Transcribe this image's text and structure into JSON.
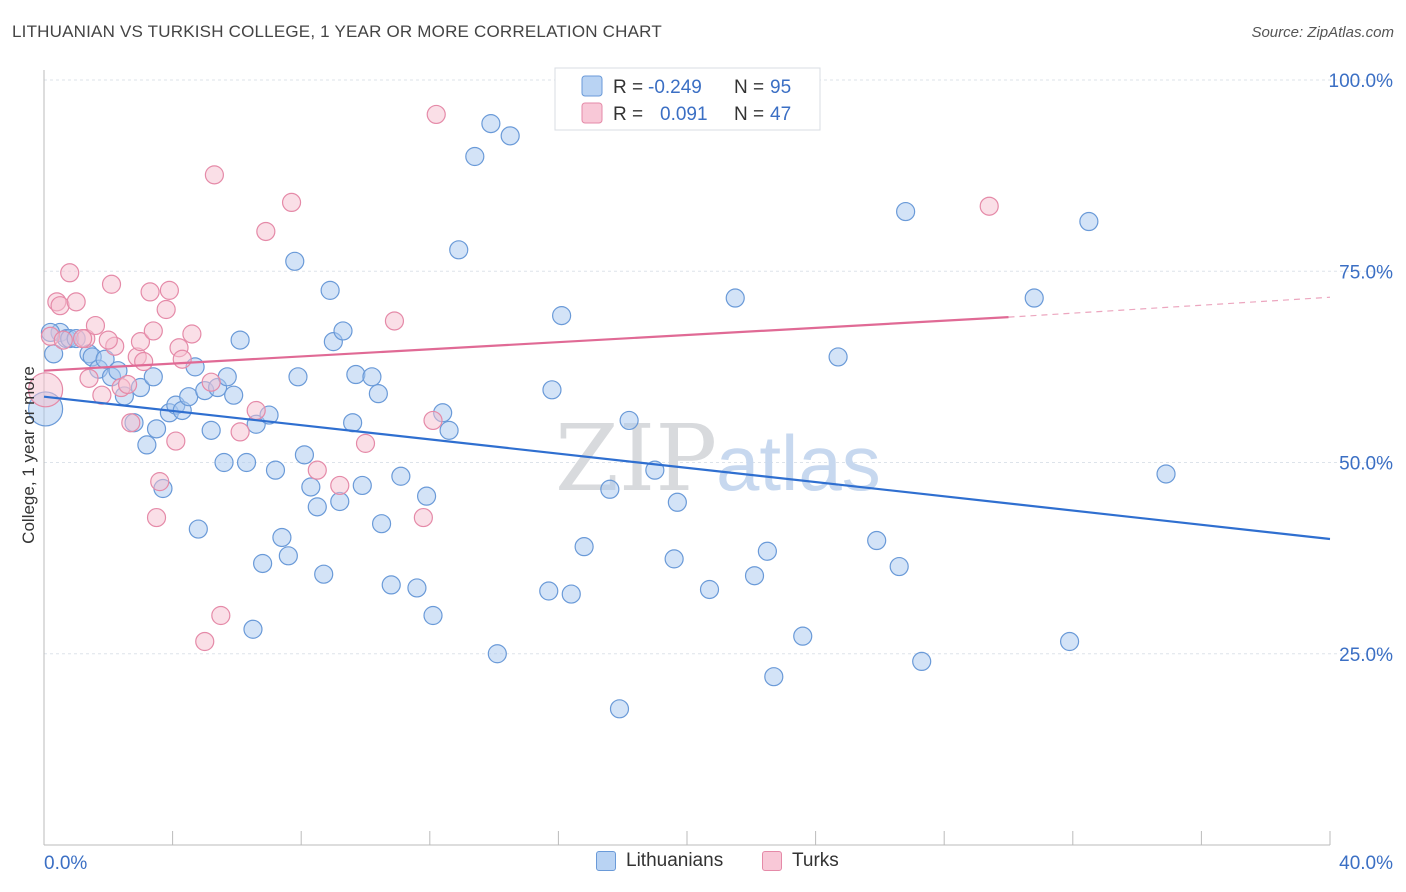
{
  "title": "LITHUANIAN VS TURKISH COLLEGE, 1 YEAR OR MORE CORRELATION CHART",
  "source": "Source: ZipAtlas.com",
  "watermark": {
    "zip": "ZIP",
    "atlas": "atlas"
  },
  "colors": {
    "blue_fill": "#a8c8f0",
    "blue_stroke": "#6a9ad8",
    "blue_line": "#2f6fd0",
    "pink_fill": "#f6bfd0",
    "pink_stroke": "#e58aa8",
    "pink_line": "#e06a95",
    "axis_text": "#3b6fc4",
    "grid": "#dde3ea"
  },
  "legend": {
    "rows": [
      {
        "r_label": "R =",
        "r_value": "-0.249",
        "n_label": "N =",
        "n_value": "95",
        "series": "Lithuanians"
      },
      {
        "r_label": "R =",
        "r_value": "0.091",
        "n_label": "N =",
        "n_value": "47",
        "series": "Turks"
      }
    ]
  },
  "bottom_legend": [
    "Lithuanians",
    "Turks"
  ],
  "chart_data": {
    "type": "scatter",
    "title": "LITHUANIAN VS TURKISH COLLEGE, 1 YEAR OR MORE CORRELATION CHART",
    "xlabel": "",
    "ylabel": "College, 1 year or more",
    "xlim": [
      0,
      40
    ],
    "ylim": [
      0,
      105
    ],
    "x_tick_labels": [
      "0.0%",
      "40.0%"
    ],
    "y_ticks": [
      25,
      50,
      75,
      100
    ],
    "y_tick_labels": [
      "25.0%",
      "50.0%",
      "75.0%",
      "100.0%"
    ],
    "grid": true,
    "series": [
      {
        "name": "Lithuanians",
        "r": -0.249,
        "n": 95,
        "trend": {
          "x": [
            0,
            40
          ],
          "y": [
            58.6,
            40.0
          ]
        },
        "points": [
          [
            0.3,
            64.2
          ],
          [
            0.5,
            67.0
          ],
          [
            0.7,
            66.2
          ],
          [
            0.8,
            66.2
          ],
          [
            1.0,
            66.2
          ],
          [
            1.4,
            64.2
          ],
          [
            1.5,
            63.8
          ],
          [
            1.7,
            62.2
          ],
          [
            1.9,
            63.5
          ],
          [
            2.1,
            61.2
          ],
          [
            2.3,
            62.0
          ],
          [
            2.5,
            58.7
          ],
          [
            2.8,
            55.2
          ],
          [
            3.0,
            59.8
          ],
          [
            3.2,
            52.3
          ],
          [
            3.4,
            61.2
          ],
          [
            3.5,
            54.4
          ],
          [
            3.7,
            46.6
          ],
          [
            3.9,
            56.5
          ],
          [
            4.1,
            57.5
          ],
          [
            4.3,
            56.8
          ],
          [
            4.5,
            58.6
          ],
          [
            4.7,
            62.5
          ],
          [
            4.8,
            41.3
          ],
          [
            5.0,
            59.4
          ],
          [
            5.2,
            54.2
          ],
          [
            5.4,
            59.8
          ],
          [
            5.6,
            50.0
          ],
          [
            5.7,
            61.2
          ],
          [
            5.9,
            58.8
          ],
          [
            6.1,
            66.0
          ],
          [
            6.3,
            50.0
          ],
          [
            6.5,
            28.2
          ],
          [
            6.6,
            55.0
          ],
          [
            6.8,
            36.8
          ],
          [
            7.0,
            56.2
          ],
          [
            7.2,
            49.0
          ],
          [
            7.4,
            40.2
          ],
          [
            7.6,
            37.8
          ],
          [
            7.8,
            76.3
          ],
          [
            7.9,
            61.2
          ],
          [
            8.1,
            51.0
          ],
          [
            8.3,
            46.8
          ],
          [
            8.5,
            44.2
          ],
          [
            8.7,
            35.4
          ],
          [
            8.9,
            72.5
          ],
          [
            9.0,
            65.8
          ],
          [
            9.2,
            44.9
          ],
          [
            9.3,
            67.2
          ],
          [
            9.6,
            55.2
          ],
          [
            9.7,
            61.5
          ],
          [
            9.9,
            47.0
          ],
          [
            10.2,
            61.2
          ],
          [
            10.4,
            59.0
          ],
          [
            10.5,
            42.0
          ],
          [
            10.8,
            34.0
          ],
          [
            11.1,
            48.2
          ],
          [
            11.6,
            33.6
          ],
          [
            11.9,
            45.6
          ],
          [
            12.1,
            30.0
          ],
          [
            12.4,
            56.5
          ],
          [
            12.6,
            54.2
          ],
          [
            12.9,
            77.8
          ],
          [
            13.4,
            90.0
          ],
          [
            13.9,
            94.3
          ],
          [
            14.1,
            25.0
          ],
          [
            14.5,
            92.7
          ],
          [
            15.7,
            33.2
          ],
          [
            15.8,
            59.5
          ],
          [
            16.1,
            69.2
          ],
          [
            16.4,
            32.8
          ],
          [
            16.8,
            39.0
          ],
          [
            17.6,
            46.5
          ],
          [
            17.9,
            17.8
          ],
          [
            18.2,
            55.5
          ],
          [
            19.0,
            49.0
          ],
          [
            19.6,
            37.4
          ],
          [
            19.7,
            44.8
          ],
          [
            20.7,
            33.4
          ],
          [
            21.5,
            71.5
          ],
          [
            22.1,
            35.2
          ],
          [
            22.5,
            38.4
          ],
          [
            22.7,
            22.0
          ],
          [
            23.6,
            27.3
          ],
          [
            24.7,
            63.8
          ],
          [
            25.9,
            39.8
          ],
          [
            26.6,
            36.4
          ],
          [
            26.8,
            82.8
          ],
          [
            27.3,
            24.0
          ],
          [
            30.8,
            71.5
          ],
          [
            31.9,
            26.6
          ],
          [
            32.5,
            81.5
          ],
          [
            34.9,
            48.5
          ],
          [
            0.05,
            57.0
          ],
          [
            0.2,
            67.0
          ]
        ]
      },
      {
        "name": "Turks",
        "r": 0.091,
        "n": 47,
        "trend": {
          "x": [
            0,
            30
          ],
          "y": [
            62.0,
            69.0
          ],
          "dashed_to": [
            40,
            71.6
          ]
        },
        "points": [
          [
            0.05,
            59.5
          ],
          [
            0.2,
            66.5
          ],
          [
            0.4,
            71.0
          ],
          [
            0.5,
            70.5
          ],
          [
            0.8,
            74.8
          ],
          [
            1.0,
            71.0
          ],
          [
            1.3,
            66.2
          ],
          [
            1.4,
            61.0
          ],
          [
            1.6,
            67.9
          ],
          [
            1.8,
            58.8
          ],
          [
            2.1,
            73.3
          ],
          [
            2.2,
            65.2
          ],
          [
            2.4,
            59.8
          ],
          [
            2.6,
            60.2
          ],
          [
            2.7,
            55.2
          ],
          [
            2.9,
            63.8
          ],
          [
            3.0,
            65.8
          ],
          [
            3.1,
            63.2
          ],
          [
            3.3,
            72.3
          ],
          [
            3.4,
            67.2
          ],
          [
            3.5,
            42.8
          ],
          [
            3.6,
            47.5
          ],
          [
            3.8,
            70.0
          ],
          [
            3.9,
            72.5
          ],
          [
            4.1,
            52.8
          ],
          [
            4.2,
            65.0
          ],
          [
            4.3,
            63.5
          ],
          [
            4.6,
            66.8
          ],
          [
            5.0,
            26.6
          ],
          [
            5.2,
            60.5
          ],
          [
            5.3,
            87.6
          ],
          [
            5.5,
            30.0
          ],
          [
            6.1,
            54.0
          ],
          [
            6.6,
            56.8
          ],
          [
            6.9,
            80.2
          ],
          [
            7.7,
            84.0
          ],
          [
            8.5,
            49.0
          ],
          [
            9.2,
            47.0
          ],
          [
            10.0,
            52.5
          ],
          [
            10.9,
            68.5
          ],
          [
            11.8,
            42.8
          ],
          [
            12.1,
            55.5
          ],
          [
            12.2,
            95.5
          ],
          [
            29.4,
            83.5
          ],
          [
            2.0,
            66.0
          ],
          [
            1.2,
            66.2
          ],
          [
            0.6,
            66.0
          ]
        ]
      }
    ]
  }
}
